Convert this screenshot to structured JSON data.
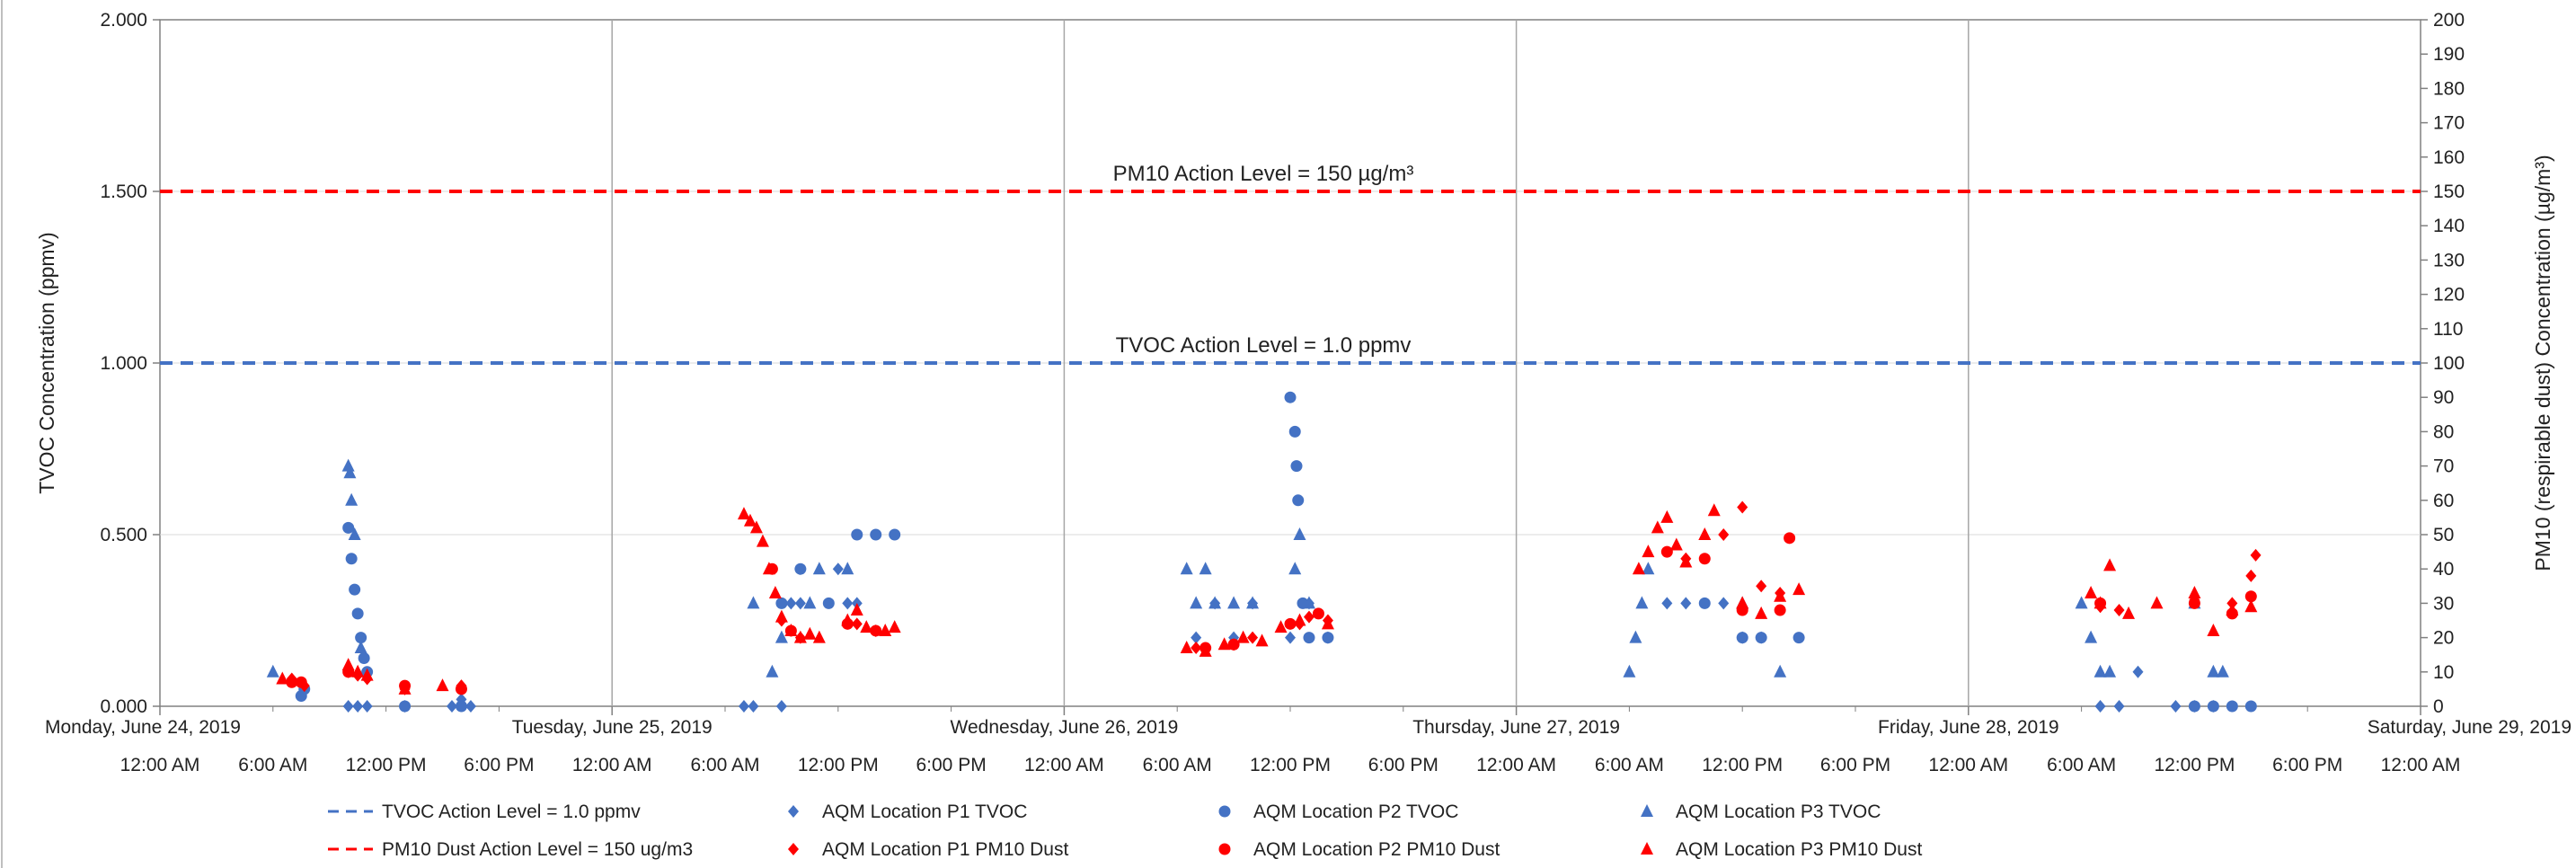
{
  "chart_data": {
    "type": "scatter",
    "x_axis": {
      "type": "date",
      "range": [
        "2019-06-24 00:00",
        "2019-06-29 00:00"
      ],
      "day_labels": [
        "Monday, June 24, 2019",
        "Tuesday, June 25, 2019",
        "Wednesday, June 26, 2019",
        "Thursday, June 27, 2019",
        "Friday, June 28, 2019",
        "Saturday, June 29, 2019"
      ],
      "time_labels": [
        "12:00 AM",
        "6:00 AM",
        "12:00 PM",
        "6:00 PM",
        "12:00 AM",
        "6:00 AM",
        "12:00 PM",
        "6:00 PM",
        "12:00 AM",
        "6:00 AM",
        "12:00 PM",
        "6:00 PM",
        "12:00 AM",
        "6:00 AM",
        "12:00 PM",
        "6:00 PM",
        "12:00 AM",
        "6:00 AM",
        "12:00 PM",
        "6:00 PM",
        "12:00 AM"
      ]
    },
    "y_left": {
      "label": "TVOC Concentration (ppmv)",
      "range": [
        0,
        2
      ],
      "ticks": [
        "0.000",
        "0.500",
        "1.000",
        "1.500",
        "2.000"
      ]
    },
    "y_right": {
      "label": "PM10 (respirable dust) Concentration (µg/m³)",
      "range": [
        0,
        200
      ],
      "ticks": [
        "0",
        "10",
        "20",
        "30",
        "40",
        "50",
        "60",
        "70",
        "80",
        "90",
        "100",
        "110",
        "120",
        "130",
        "140",
        "150",
        "160",
        "170",
        "180",
        "190",
        "200"
      ]
    },
    "grid": "vertical at day boundaries, light horizontal at left ticks",
    "legend_position": "bottom",
    "reference_lines": [
      {
        "name": "TVOC Action Level = 1.0 ppmv",
        "axis": "left",
        "value": 1.0,
        "color": "#4472C4",
        "annotation": "TVOC Action Level = 1.0 ppmv"
      },
      {
        "name": "PM10 Dust Action Level = 150 ug/m3",
        "axis": "right",
        "value": 150,
        "color": "#FF0000",
        "annotation": "PM10 Action Level = 150 µg/m³"
      }
    ],
    "series": [
      {
        "name": "AQM Location P1 TVOC",
        "axis": "left",
        "marker": "diamond",
        "color": "#4472C4",
        "points": [
          [
            "2019-06-24 10:00",
            0.0
          ],
          [
            "2019-06-24 10:30",
            0.0
          ],
          [
            "2019-06-24 11:00",
            0.0
          ],
          [
            "2019-06-24 13:00",
            0.0
          ],
          [
            "2019-06-24 15:30",
            0.0
          ],
          [
            "2019-06-24 16:00",
            0.02
          ],
          [
            "2019-06-24 16:30",
            0.0
          ],
          [
            "2019-06-25 07:00",
            0.0
          ],
          [
            "2019-06-25 07:30",
            0.0
          ],
          [
            "2019-06-25 09:00",
            0.0
          ],
          [
            "2019-06-25 09:30",
            0.3
          ],
          [
            "2019-06-25 10:00",
            0.3
          ],
          [
            "2019-06-25 12:00",
            0.4
          ],
          [
            "2019-06-25 12:30",
            0.3
          ],
          [
            "2019-06-25 13:00",
            0.3
          ],
          [
            "2019-06-26 07:00",
            0.2
          ],
          [
            "2019-06-26 08:00",
            0.3
          ],
          [
            "2019-06-26 09:00",
            0.2
          ],
          [
            "2019-06-26 10:00",
            0.3
          ],
          [
            "2019-06-26 12:00",
            0.2
          ],
          [
            "2019-06-26 13:00",
            0.3
          ],
          [
            "2019-06-26 14:00",
            0.2
          ],
          [
            "2019-06-27 08:00",
            0.3
          ],
          [
            "2019-06-27 09:00",
            0.3
          ],
          [
            "2019-06-27 11:00",
            0.3
          ],
          [
            "2019-06-27 12:00",
            0.2
          ],
          [
            "2019-06-27 13:00",
            0.2
          ],
          [
            "2019-06-28 07:00",
            0.0
          ],
          [
            "2019-06-28 08:00",
            0.0
          ],
          [
            "2019-06-28 09:00",
            0.1
          ],
          [
            "2019-06-28 11:00",
            0.0
          ],
          [
            "2019-06-28 12:00",
            0.0
          ],
          [
            "2019-06-28 13:00",
            0.0
          ]
        ]
      },
      {
        "name": "AQM Location P2 TVOC",
        "axis": "left",
        "marker": "circle",
        "color": "#4472C4",
        "points": [
          [
            "2019-06-24 07:30",
            0.03
          ],
          [
            "2019-06-24 07:40",
            0.05
          ],
          [
            "2019-06-24 10:00",
            0.52
          ],
          [
            "2019-06-24 10:10",
            0.43
          ],
          [
            "2019-06-24 10:20",
            0.34
          ],
          [
            "2019-06-24 10:30",
            0.27
          ],
          [
            "2019-06-24 10:40",
            0.2
          ],
          [
            "2019-06-24 10:50",
            0.14
          ],
          [
            "2019-06-24 11:00",
            0.1
          ],
          [
            "2019-06-24 13:00",
            0.0
          ],
          [
            "2019-06-24 16:00",
            0.0
          ],
          [
            "2019-06-25 09:00",
            0.3
          ],
          [
            "2019-06-25 10:00",
            0.4
          ],
          [
            "2019-06-25 11:30",
            0.3
          ],
          [
            "2019-06-25 13:00",
            0.5
          ],
          [
            "2019-06-25 14:00",
            0.5
          ],
          [
            "2019-06-25 15:00",
            0.5
          ],
          [
            "2019-06-26 12:00",
            0.9
          ],
          [
            "2019-06-26 12:15",
            0.8
          ],
          [
            "2019-06-26 12:20",
            0.7
          ],
          [
            "2019-06-26 12:25",
            0.6
          ],
          [
            "2019-06-26 12:40",
            0.3
          ],
          [
            "2019-06-26 13:00",
            0.2
          ],
          [
            "2019-06-26 14:00",
            0.2
          ],
          [
            "2019-06-27 10:00",
            0.3
          ],
          [
            "2019-06-27 12:00",
            0.2
          ],
          [
            "2019-06-27 13:00",
            0.2
          ],
          [
            "2019-06-27 15:00",
            0.2
          ],
          [
            "2019-06-28 12:00",
            0.0
          ],
          [
            "2019-06-28 13:00",
            0.0
          ],
          [
            "2019-06-28 14:00",
            0.0
          ],
          [
            "2019-06-28 15:00",
            0.0
          ]
        ]
      },
      {
        "name": "AQM Location P3 TVOC",
        "axis": "left",
        "marker": "triangle",
        "color": "#4472C4",
        "points": [
          [
            "2019-06-24 06:00",
            0.1
          ],
          [
            "2019-06-24 10:00",
            0.7
          ],
          [
            "2019-06-24 10:05",
            0.68
          ],
          [
            "2019-06-24 10:10",
            0.6
          ],
          [
            "2019-06-24 10:20",
            0.5
          ],
          [
            "2019-06-24 10:40",
            0.17
          ],
          [
            "2019-06-25 07:30",
            0.3
          ],
          [
            "2019-06-25 08:30",
            0.1
          ],
          [
            "2019-06-25 09:00",
            0.2
          ],
          [
            "2019-06-25 10:30",
            0.3
          ],
          [
            "2019-06-25 11:00",
            0.4
          ],
          [
            "2019-06-25 12:30",
            0.4
          ],
          [
            "2019-06-26 06:30",
            0.4
          ],
          [
            "2019-06-26 07:00",
            0.3
          ],
          [
            "2019-06-26 07:30",
            0.4
          ],
          [
            "2019-06-26 08:00",
            0.3
          ],
          [
            "2019-06-26 09:00",
            0.3
          ],
          [
            "2019-06-26 10:00",
            0.3
          ],
          [
            "2019-06-26 12:15",
            0.4
          ],
          [
            "2019-06-26 12:30",
            0.5
          ],
          [
            "2019-06-26 13:00",
            0.3
          ],
          [
            "2019-06-27 06:00",
            0.1
          ],
          [
            "2019-06-27 06:20",
            0.2
          ],
          [
            "2019-06-27 06:40",
            0.3
          ],
          [
            "2019-06-27 07:00",
            0.4
          ],
          [
            "2019-06-27 12:00",
            0.3
          ],
          [
            "2019-06-27 14:00",
            0.1
          ],
          [
            "2019-06-28 06:00",
            0.3
          ],
          [
            "2019-06-28 06:30",
            0.2
          ],
          [
            "2019-06-28 07:00",
            0.1
          ],
          [
            "2019-06-28 07:30",
            0.1
          ],
          [
            "2019-06-28 12:00",
            0.3
          ],
          [
            "2019-06-28 13:00",
            0.1
          ],
          [
            "2019-06-28 13:30",
            0.1
          ]
        ]
      },
      {
        "name": "AQM Location P1 PM10 Dust",
        "axis": "right",
        "marker": "diamond",
        "color": "#FF0000",
        "points": [
          [
            "2019-06-24 07:00",
            8
          ],
          [
            "2019-06-24 07:40",
            6
          ],
          [
            "2019-06-24 10:00",
            10
          ],
          [
            "2019-06-24 10:30",
            9
          ],
          [
            "2019-06-24 11:00",
            8
          ],
          [
            "2019-06-24 13:00",
            5
          ],
          [
            "2019-06-24 16:00",
            6
          ],
          [
            "2019-06-25 09:00",
            25
          ],
          [
            "2019-06-25 10:00",
            20
          ],
          [
            "2019-06-25 13:00",
            24
          ],
          [
            "2019-06-25 14:00",
            22
          ],
          [
            "2019-06-26 07:00",
            17
          ],
          [
            "2019-06-26 09:00",
            18
          ],
          [
            "2019-06-26 10:00",
            20
          ],
          [
            "2019-06-26 12:30",
            24
          ],
          [
            "2019-06-26 13:00",
            26
          ],
          [
            "2019-06-26 14:00",
            25
          ],
          [
            "2019-06-27 09:00",
            43
          ],
          [
            "2019-06-27 11:00",
            50
          ],
          [
            "2019-06-27 12:00",
            58
          ],
          [
            "2019-06-27 13:00",
            35
          ],
          [
            "2019-06-27 14:00",
            33
          ],
          [
            "2019-06-28 07:00",
            29
          ],
          [
            "2019-06-28 08:00",
            28
          ],
          [
            "2019-06-28 12:00",
            31
          ],
          [
            "2019-06-28 14:00",
            30
          ],
          [
            "2019-06-28 15:00",
            38
          ],
          [
            "2019-06-28 15:15",
            44
          ]
        ]
      },
      {
        "name": "AQM Location P2 PM10 Dust",
        "axis": "right",
        "marker": "circle",
        "color": "#FF0000",
        "points": [
          [
            "2019-06-24 07:00",
            7
          ],
          [
            "2019-06-24 07:30",
            7
          ],
          [
            "2019-06-24 10:00",
            10
          ],
          [
            "2019-06-24 13:00",
            6
          ],
          [
            "2019-06-24 16:00",
            5
          ],
          [
            "2019-06-25 08:30",
            40
          ],
          [
            "2019-06-25 09:30",
            22
          ],
          [
            "2019-06-25 12:30",
            24
          ],
          [
            "2019-06-25 14:00",
            22
          ],
          [
            "2019-06-26 07:30",
            17
          ],
          [
            "2019-06-26 09:00",
            18
          ],
          [
            "2019-06-26 12:00",
            24
          ],
          [
            "2019-06-26 13:30",
            27
          ],
          [
            "2019-06-27 08:00",
            45
          ],
          [
            "2019-06-27 10:00",
            43
          ],
          [
            "2019-06-27 12:00",
            28
          ],
          [
            "2019-06-27 14:00",
            28
          ],
          [
            "2019-06-27 14:30",
            49
          ],
          [
            "2019-06-28 07:00",
            30
          ],
          [
            "2019-06-28 12:00",
            30
          ],
          [
            "2019-06-28 14:00",
            27
          ],
          [
            "2019-06-28 15:00",
            32
          ]
        ]
      },
      {
        "name": "AQM Location P3 PM10 Dust",
        "axis": "right",
        "marker": "triangle",
        "color": "#FF0000",
        "points": [
          [
            "2019-06-24 06:30",
            8
          ],
          [
            "2019-06-24 10:00",
            12
          ],
          [
            "2019-06-24 10:30",
            10
          ],
          [
            "2019-06-24 11:00",
            9
          ],
          [
            "2019-06-24 13:00",
            5
          ],
          [
            "2019-06-24 15:00",
            6
          ],
          [
            "2019-06-25 07:00",
            56
          ],
          [
            "2019-06-25 07:20",
            54
          ],
          [
            "2019-06-25 07:40",
            52
          ],
          [
            "2019-06-25 08:00",
            48
          ],
          [
            "2019-06-25 08:20",
            40
          ],
          [
            "2019-06-25 08:40",
            33
          ],
          [
            "2019-06-25 09:00",
            26
          ],
          [
            "2019-06-25 09:30",
            22
          ],
          [
            "2019-06-25 10:00",
            20
          ],
          [
            "2019-06-25 10:30",
            21
          ],
          [
            "2019-06-25 11:00",
            20
          ],
          [
            "2019-06-25 12:30",
            25
          ],
          [
            "2019-06-25 13:00",
            28
          ],
          [
            "2019-06-25 13:30",
            23
          ],
          [
            "2019-06-25 14:30",
            22
          ],
          [
            "2019-06-25 15:00",
            23
          ],
          [
            "2019-06-26 06:30",
            17
          ],
          [
            "2019-06-26 07:30",
            16
          ],
          [
            "2019-06-26 08:30",
            18
          ],
          [
            "2019-06-26 09:30",
            20
          ],
          [
            "2019-06-26 10:30",
            19
          ],
          [
            "2019-06-26 11:30",
            23
          ],
          [
            "2019-06-26 12:30",
            25
          ],
          [
            "2019-06-26 14:00",
            24
          ],
          [
            "2019-06-27 06:30",
            40
          ],
          [
            "2019-06-27 07:00",
            45
          ],
          [
            "2019-06-27 07:30",
            52
          ],
          [
            "2019-06-27 08:00",
            55
          ],
          [
            "2019-06-27 08:30",
            47
          ],
          [
            "2019-06-27 09:00",
            42
          ],
          [
            "2019-06-27 10:00",
            50
          ],
          [
            "2019-06-27 10:30",
            57
          ],
          [
            "2019-06-27 12:00",
            30
          ],
          [
            "2019-06-27 13:00",
            27
          ],
          [
            "2019-06-27 14:00",
            32
          ],
          [
            "2019-06-27 15:00",
            34
          ],
          [
            "2019-06-28 06:30",
            33
          ],
          [
            "2019-06-28 07:00",
            30
          ],
          [
            "2019-06-28 07:30",
            41
          ],
          [
            "2019-06-28 08:30",
            27
          ],
          [
            "2019-06-28 10:00",
            30
          ],
          [
            "2019-06-28 12:00",
            33
          ],
          [
            "2019-06-28 13:00",
            22
          ],
          [
            "2019-06-28 14:00",
            28
          ],
          [
            "2019-06-28 15:00",
            29
          ]
        ]
      }
    ]
  }
}
